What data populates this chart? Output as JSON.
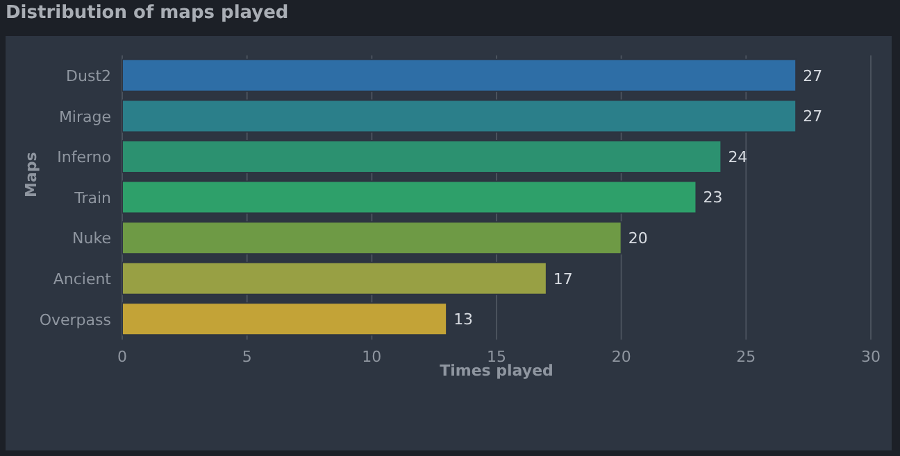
{
  "chart_data": {
    "type": "bar",
    "orientation": "horizontal",
    "title": "Distribution of maps played",
    "xlabel": "Times played",
    "ylabel": "Maps",
    "categories": [
      "Dust2",
      "Mirage",
      "Inferno",
      "Train",
      "Nuke",
      "Ancient",
      "Overpass"
    ],
    "values": [
      27,
      27,
      24,
      23,
      20,
      17,
      13
    ],
    "colors": [
      "#2e6ea6",
      "#2b7f8a",
      "#2c9170",
      "#2ea06a",
      "#6e9a45",
      "#98a044",
      "#c3a337"
    ],
    "xlim": [
      0,
      30
    ],
    "xticks": [
      0,
      5,
      10,
      15,
      20,
      25,
      30
    ],
    "grid": "x",
    "data_labels": true
  }
}
